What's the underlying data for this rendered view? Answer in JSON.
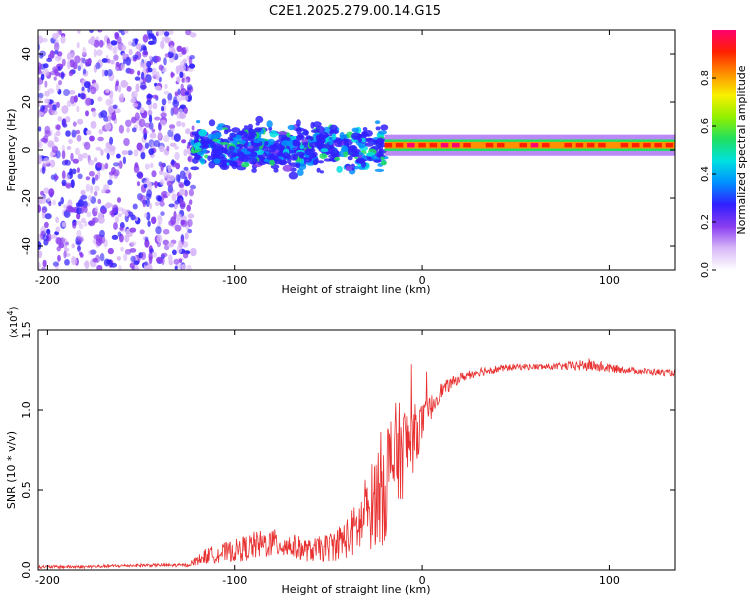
{
  "title": "C2E1.2025.279.00.14.G15",
  "chart_data": [
    {
      "type": "heatmap",
      "title": "C2E1.2025.279.00.14.G15",
      "xlabel": "Height of straight line (km)",
      "ylabel": "Frequency (Hz)",
      "xlim": [
        -205,
        135
      ],
      "ylim": [
        -50,
        50
      ],
      "xticks": [
        -200,
        -100,
        0,
        100
      ],
      "yticks": [
        -40,
        -20,
        0,
        20,
        40
      ],
      "colorbar": {
        "label": "Normalized spectral amplitude",
        "range": [
          0,
          1
        ],
        "ticks": [
          "0.0",
          "0.2",
          "0.4",
          "0.6",
          "0.8"
        ],
        "colors": [
          "#ffffff",
          "#d8b8f8",
          "#8a3cf0",
          "#3020ff",
          "#0090ff",
          "#00e0e0",
          "#20e060",
          "#90f000",
          "#f8f000",
          "#ff9000",
          "#ff2000",
          "#ff0070"
        ]
      },
      "regions": [
        {
          "name": "noise-scatter",
          "x_range": [
            -205,
            -122
          ],
          "freq_range": [
            -50,
            50
          ],
          "amplitude": 0.2
        },
        {
          "name": "transition-band",
          "x_range": [
            -122,
            -20
          ],
          "freq_range": [
            -15,
            12
          ],
          "amplitude": 0.35
        },
        {
          "name": "signal-line",
          "x_range": [
            -20,
            135
          ],
          "freq_center": 2,
          "freq_halfwidth": 2,
          "amplitude": 0.95
        }
      ]
    },
    {
      "type": "line",
      "xlabel": "Height of straight line (km)",
      "ylabel": "SNR (10 * v/v)",
      "scale_label": "(x10",
      "scale_exp": "4",
      "xlim": [
        -205,
        135
      ],
      "ylim": [
        0,
        1.5
      ],
      "xticks": [
        -200,
        -100,
        0,
        100
      ],
      "yticks": [
        "0.0",
        "0.5",
        "1.0",
        "1.5"
      ],
      "series": [
        {
          "name": "SNR",
          "color": "#e83030",
          "envelope_x": [
            -205,
            -180,
            -150,
            -125,
            -115,
            -100,
            -90,
            -80,
            -70,
            -60,
            -50,
            -40,
            -30,
            -25,
            -20,
            -15,
            -10,
            -5,
            0,
            5,
            10,
            20,
            30,
            50,
            70,
            90,
            100,
            110,
            120,
            135
          ],
          "envelope_y": [
            0.02,
            0.02,
            0.03,
            0.03,
            0.09,
            0.12,
            0.15,
            0.17,
            0.15,
            0.12,
            0.14,
            0.2,
            0.32,
            0.45,
            0.55,
            0.7,
            0.75,
            0.82,
            0.92,
            1.02,
            1.12,
            1.2,
            1.24,
            1.27,
            1.27,
            1.28,
            1.26,
            1.25,
            1.24,
            1.23
          ],
          "noise_y": [
            0.01,
            0.01,
            0.01,
            0.01,
            0.05,
            0.07,
            0.09,
            0.09,
            0.08,
            0.07,
            0.09,
            0.13,
            0.22,
            0.3,
            0.4,
            0.35,
            0.3,
            0.22,
            0.12,
            0.08,
            0.05,
            0.03,
            0.03,
            0.02,
            0.02,
            0.04,
            0.03,
            0.02,
            0.02,
            0.02
          ]
        }
      ]
    }
  ]
}
